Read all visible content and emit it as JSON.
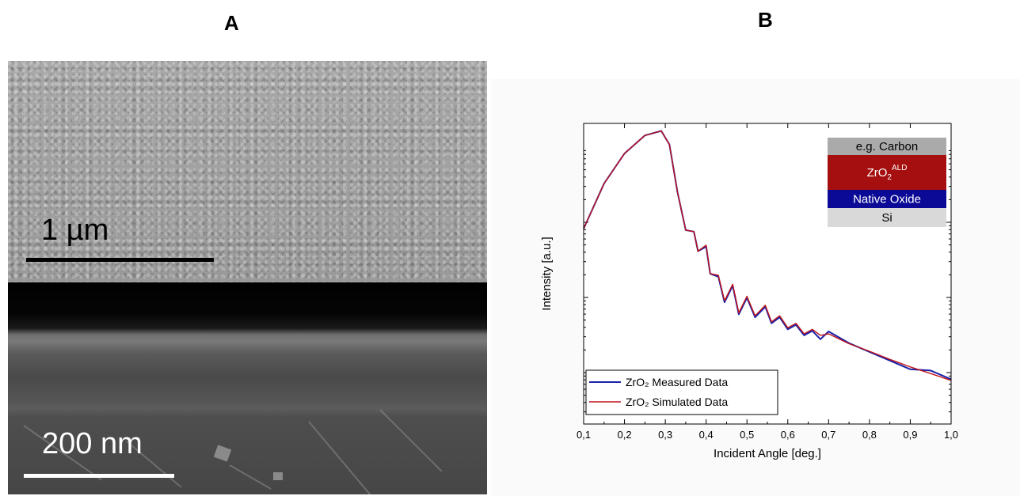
{
  "panels": {
    "a_label": "A",
    "b_label": "B"
  },
  "sem": {
    "top_scale_label": "1 µm",
    "bottom_scale_label": "200 nm"
  },
  "chart_data": {
    "type": "line",
    "xlabel": "Incident Angle [deg.]",
    "ylabel": "Intensity [a.u.]",
    "xlim": [
      0.1,
      1.0
    ],
    "x_ticks": [
      "0,1",
      "0,2",
      "0,3",
      "0,4",
      "0,5",
      "0,6",
      "0,7",
      "0,8",
      "0,9",
      "1,0"
    ],
    "y_scale": "log",
    "y_tick_labels": [],
    "legend_position": "bottom-left",
    "series": [
      {
        "name": "ZrO₂ Measured Data",
        "color": "#1a22a8",
        "x": [
          0.1,
          0.15,
          0.2,
          0.25,
          0.29,
          0.31,
          0.33,
          0.35,
          0.37,
          0.38,
          0.4,
          0.41,
          0.43,
          0.445,
          0.465,
          0.48,
          0.5,
          0.52,
          0.545,
          0.56,
          0.58,
          0.6,
          0.62,
          0.64,
          0.66,
          0.68,
          0.7,
          0.75,
          0.8,
          0.85,
          0.9,
          0.95,
          1.0
        ],
        "y": [
          0.65,
          0.8,
          0.9,
          0.96,
          0.975,
          0.93,
          0.77,
          0.645,
          0.64,
          0.575,
          0.59,
          0.5,
          0.49,
          0.405,
          0.46,
          0.365,
          0.42,
          0.355,
          0.39,
          0.335,
          0.355,
          0.315,
          0.33,
          0.295,
          0.31,
          0.29,
          0.3,
          0.265,
          0.24,
          0.215,
          0.19,
          0.17,
          0.145
        ]
      },
      {
        "name": "ZrO₂ Simulated Data",
        "color": "#c0141c",
        "x": [
          0.1,
          0.15,
          0.2,
          0.25,
          0.29,
          0.31,
          0.33,
          0.35,
          0.37,
          0.38,
          0.4,
          0.41,
          0.43,
          0.445,
          0.465,
          0.48,
          0.5,
          0.52,
          0.545,
          0.56,
          0.58,
          0.6,
          0.62,
          0.64,
          0.66,
          0.68,
          0.7,
          0.75,
          0.8,
          0.85,
          0.9,
          0.95,
          1.0
        ],
        "y": [
          0.65,
          0.8,
          0.9,
          0.96,
          0.975,
          0.93,
          0.77,
          0.645,
          0.64,
          0.575,
          0.595,
          0.5,
          0.495,
          0.41,
          0.465,
          0.37,
          0.425,
          0.36,
          0.395,
          0.34,
          0.36,
          0.32,
          0.335,
          0.3,
          0.315,
          0.295,
          0.3,
          0.267,
          0.242,
          0.215,
          0.19,
          0.168,
          0.145
        ]
      }
    ],
    "inset_layers": [
      {
        "label": "e.g. Carbon",
        "color": "#aaaaaa",
        "text_color": "#000000"
      },
      {
        "label": "ZrO",
        "sub": "2",
        "sup": "ALD",
        "color": "#a60f0f",
        "text_color": "#ffffff"
      },
      {
        "label": "Native Oxide",
        "color": "#0a0a96",
        "text_color": "#ffffff"
      },
      {
        "label": "Si",
        "color": "#d9d9d9",
        "text_color": "#000000"
      }
    ]
  }
}
